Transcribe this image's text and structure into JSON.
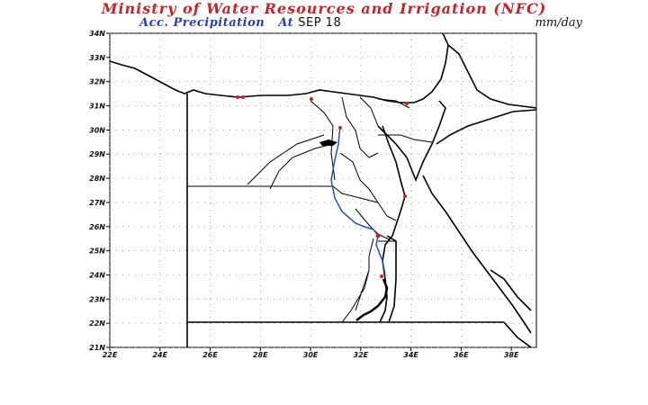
{
  "title": "Ministry of Water Resources and Irrigation (NFC)",
  "subtitle": {
    "label": "Acc. Precipitation",
    "at": "At",
    "date": "SEP 18"
  },
  "units": "mm/day",
  "map": {
    "lat_labels": [
      "34N",
      "33N",
      "32N",
      "31N",
      "30N",
      "29N",
      "28N",
      "27N",
      "26N",
      "25N",
      "24N",
      "23N",
      "22N",
      "21N"
    ],
    "lon_labels": [
      "22E",
      "24E",
      "26E",
      "28E",
      "30E",
      "32E",
      "34E",
      "36E",
      "38E"
    ],
    "lat_range": [
      21,
      34
    ],
    "lon_range": [
      22,
      39
    ],
    "grid": "dotted",
    "colors": {
      "border": "#000000",
      "nile": "#2b4fb5",
      "precip_marker": "#d22020"
    }
  }
}
